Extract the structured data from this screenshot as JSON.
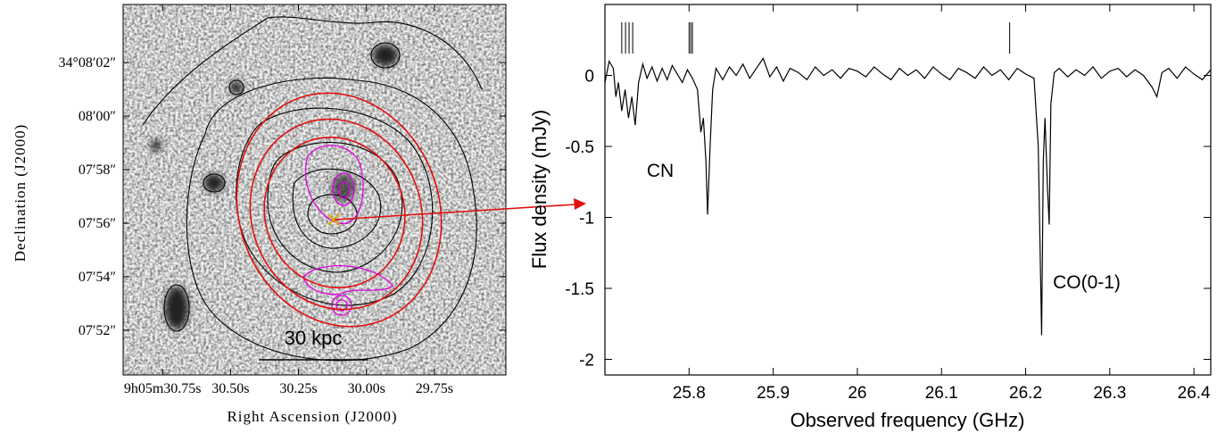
{
  "chart_data": [
    {
      "type": "image",
      "xlabel": "Right Ascension (J2000)",
      "ylabel": "Declination (J2000)",
      "annotation": "30 kpc",
      "xlim": [
        30.895,
        29.487
      ],
      "ylim": [
        50.33,
        64.17
      ],
      "xticks": [
        {
          "value": 30.75,
          "label": "9h05m30.75s"
        },
        {
          "value": 30.5,
          "label": "30.50s"
        },
        {
          "value": 30.25,
          "label": "30.25s"
        },
        {
          "value": 30.0,
          "label": "30.00s"
        },
        {
          "value": 29.75,
          "label": "29.75s"
        }
      ],
      "yticks": [
        {
          "value": 62,
          "label": "34°08′02″"
        },
        {
          "value": 60,
          "label": "08′00″"
        },
        {
          "value": 58,
          "label": "07′58″"
        },
        {
          "value": 56,
          "label": "07′56″"
        },
        {
          "value": 54,
          "label": "07′54″"
        },
        {
          "value": 52,
          "label": "07′52″"
        }
      ]
    },
    {
      "type": "line",
      "xlabel": "Observed frequency (GHz)",
      "ylabel": "Flux density (mJy)",
      "annotations": [
        "CN",
        "CO(0-1)"
      ],
      "color": "#000000",
      "xlim": [
        25.7,
        26.42
      ],
      "ylim": [
        -2.11,
        0.5
      ],
      "xticks": [
        25.8,
        25.9,
        26,
        26.1,
        26.2,
        26.3,
        26.4
      ],
      "yticks": [
        0,
        -0.5,
        -1,
        -1.5,
        -2
      ],
      "line_markers": [
        25.72,
        25.7245,
        25.7287,
        25.733,
        25.8,
        25.802,
        25.804,
        26.181
      ],
      "x": [
        25.7,
        25.705,
        25.71,
        25.713,
        25.716,
        25.72,
        25.724,
        25.728,
        25.732,
        25.736,
        25.74,
        25.745,
        25.75,
        25.756,
        25.762,
        25.768,
        25.774,
        25.78,
        25.786,
        25.792,
        25.798,
        25.804,
        25.81,
        25.814,
        25.817,
        25.82,
        25.822,
        25.825,
        25.828,
        25.832,
        25.84,
        25.848,
        25.856,
        25.864,
        25.872,
        25.88,
        25.888,
        25.896,
        25.904,
        25.912,
        25.92,
        25.93,
        25.94,
        25.95,
        25.96,
        25.97,
        25.98,
        25.99,
        26.0,
        26.01,
        26.02,
        26.03,
        26.04,
        26.05,
        26.06,
        26.07,
        26.08,
        26.09,
        26.1,
        26.11,
        26.12,
        26.13,
        26.14,
        26.15,
        26.16,
        26.17,
        26.18,
        26.19,
        26.2,
        26.21,
        26.215,
        26.219,
        26.221,
        26.223,
        26.226,
        26.228,
        26.23,
        26.234,
        26.24,
        26.25,
        26.26,
        26.27,
        26.28,
        26.29,
        26.3,
        26.31,
        26.32,
        26.33,
        26.34,
        26.35,
        26.356,
        26.362,
        26.37,
        26.38,
        26.39,
        26.4,
        26.41,
        26.42
      ],
      "values": [
        -0.05,
        0.1,
        0.05,
        -0.15,
        -0.05,
        -0.25,
        -0.1,
        -0.3,
        -0.15,
        -0.35,
        -0.05,
        0.08,
        -0.02,
        0.06,
        -0.04,
        0.05,
        -0.03,
        0.07,
        0.01,
        -0.05,
        0.04,
        -0.02,
        -0.1,
        -0.4,
        -0.3,
        -0.6,
        -0.98,
        -0.5,
        -0.1,
        0.05,
        -0.03,
        0.06,
        0.0,
        0.08,
        -0.02,
        0.05,
        0.12,
        -0.01,
        0.06,
        -0.04,
        0.05,
        0.02,
        -0.03,
        0.06,
        0.0,
        0.04,
        -0.02,
        0.05,
        0.03,
        -0.01,
        0.06,
        0.01,
        -0.03,
        0.05,
        0.0,
        0.04,
        -0.02,
        0.06,
        0.01,
        -0.03,
        0.05,
        0.02,
        -0.02,
        0.06,
        0.0,
        0.04,
        -0.03,
        0.05,
        0.01,
        -0.02,
        -0.5,
        -1.83,
        -0.6,
        -0.3,
        -0.8,
        -1.05,
        -0.2,
        0.02,
        0.05,
        -0.01,
        0.04,
        0.0,
        0.06,
        -0.02,
        0.03,
        0.05,
        -0.01,
        0.04,
        0.0,
        -0.08,
        -0.15,
        0.02,
        0.05,
        -0.02,
        0.06,
        0.01,
        -0.03,
        0.04
      ]
    }
  ]
}
